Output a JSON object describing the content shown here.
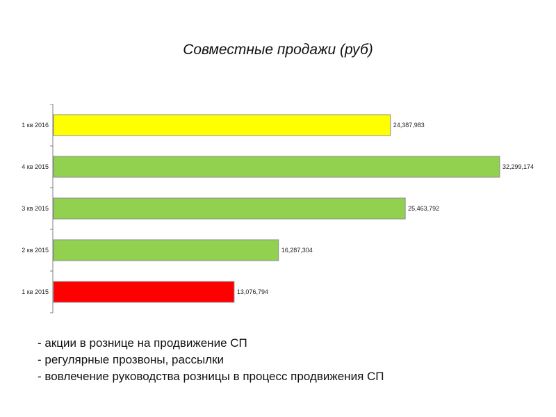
{
  "title": "Совместные продажи (руб)",
  "chart_data": {
    "type": "bar",
    "orientation": "horizontal",
    "categories": [
      "1 кв 2016",
      "4 кв 2015",
      "3 кв 2015",
      "2 кв 2015",
      "1 кв 2015"
    ],
    "values": [
      24387983,
      32299174,
      25463792,
      16287304,
      13076794
    ],
    "value_labels": [
      "24,387,983",
      "32,299,174",
      "25,463,792",
      "16,287,304",
      "13,076,794"
    ],
    "colors": [
      "#ffff00",
      "#92d050",
      "#92d050",
      "#92d050",
      "#ff0000"
    ],
    "xlim": [
      0,
      32299174
    ],
    "grid": false
  },
  "notes": [
    "- акции в рознице на продвижение СП",
    "- регулярные прозвоны, рассылки",
    "- вовлечение руководства розницы в процесс продвижения СП"
  ]
}
